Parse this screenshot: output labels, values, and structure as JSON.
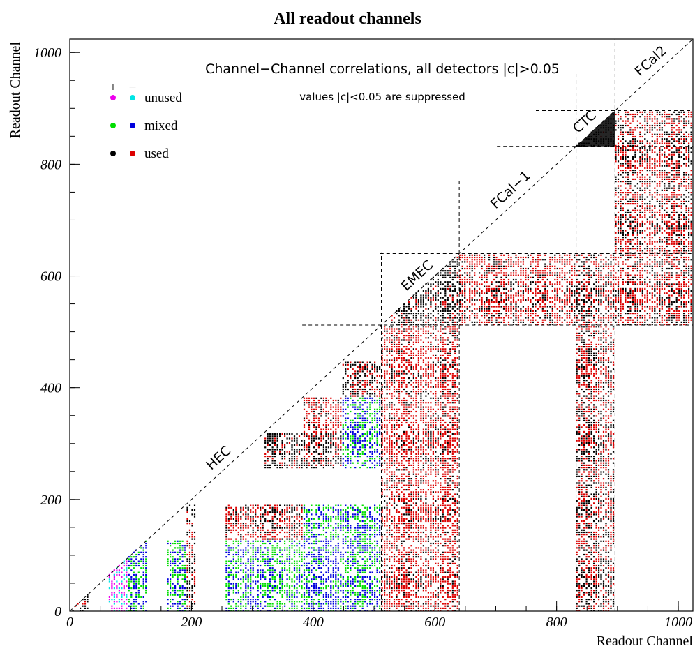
{
  "chart_data": {
    "type": "scatter",
    "title": "All readout channels",
    "xlabel": "Readout Channel",
    "ylabel": "Readout Channel",
    "xlim": [
      0,
      1024
    ],
    "ylim": [
      0,
      1024
    ],
    "x_ticks": [
      0,
      200,
      400,
      600,
      800,
      1000
    ],
    "y_ticks": [
      0,
      200,
      400,
      600,
      800,
      1000
    ],
    "annotations": {
      "main": "Channel−Channel correlations, all detectors |c|>0.05",
      "sub": "values |c|<0.05 are suppressed"
    },
    "legend": {
      "placement": "top-left",
      "sign_headers": [
        "+",
        "−"
      ],
      "entries": [
        {
          "label": "unused",
          "pos_color": "#ee00ee",
          "neg_color": "#00e5e5"
        },
        {
          "label": "mixed",
          "pos_color": "#00dd00",
          "neg_color": "#0000dd"
        },
        {
          "label": "used",
          "pos_color": "#000000",
          "neg_color": "#dd0000"
        }
      ]
    },
    "regions": [
      {
        "label": "HEC",
        "start": 0,
        "end": 512
      },
      {
        "label": "EMEC",
        "start": 512,
        "end": 640
      },
      {
        "label": "FCal−1",
        "start": 640,
        "end": 832
      },
      {
        "label": "CTC",
        "start": 832,
        "end": 896
      },
      {
        "label": "FCal2",
        "start": 896,
        "end": 1024
      }
    ],
    "boundaries": [
      512,
      640,
      832,
      896
    ],
    "blocks": [
      {
        "x": [
          0,
          32
        ],
        "y": [
          0,
          32
        ],
        "kind": "used",
        "pos": 0.75
      },
      {
        "x": [
          64,
          96
        ],
        "y": [
          64,
          96
        ],
        "kind": "unused",
        "pos": 0.7
      },
      {
        "x": [
          64,
          96
        ],
        "y": [
          0,
          96
        ],
        "kind": "unused",
        "pos": 0.55
      },
      {
        "x": [
          96,
          128
        ],
        "y": [
          0,
          128
        ],
        "kind": "mixed",
        "pos": 0.5
      },
      {
        "x": [
          160,
          192
        ],
        "y": [
          0,
          128
        ],
        "kind": "mixed",
        "pos": 0.55
      },
      {
        "x": [
          192,
          208
        ],
        "y": [
          0,
          192
        ],
        "kind": "used",
        "pos": 0.6
      },
      {
        "x": [
          256,
          320
        ],
        "y": [
          0,
          128
        ],
        "kind": "mixed",
        "pos": 0.5
      },
      {
        "x": [
          320,
          384
        ],
        "y": [
          0,
          128
        ],
        "kind": "mixed",
        "pos": 0.7
      },
      {
        "x": [
          384,
          448
        ],
        "y": [
          0,
          128
        ],
        "kind": "mixed",
        "pos": 0.3
      },
      {
        "x": [
          448,
          512
        ],
        "y": [
          0,
          128
        ],
        "kind": "mixed",
        "pos": 0.5
      },
      {
        "x": [
          256,
          320
        ],
        "y": [
          128,
          192
        ],
        "kind": "used",
        "pos": 0.35
      },
      {
        "x": [
          320,
          384
        ],
        "y": [
          128,
          192
        ],
        "kind": "used",
        "pos": 0.4
      },
      {
        "x": [
          384,
          512
        ],
        "y": [
          128,
          192
        ],
        "kind": "mixed",
        "pos": 0.5
      },
      {
        "x": [
          320,
          384
        ],
        "y": [
          256,
          320
        ],
        "kind": "used",
        "pos": 0.7
      },
      {
        "x": [
          384,
          448
        ],
        "y": [
          256,
          320
        ],
        "kind": "used",
        "pos": 0.6
      },
      {
        "x": [
          448,
          512
        ],
        "y": [
          256,
          320
        ],
        "kind": "mixed",
        "pos": 0.5
      },
      {
        "x": [
          384,
          448
        ],
        "y": [
          320,
          384
        ],
        "kind": "used",
        "pos": 0.2
      },
      {
        "x": [
          448,
          512
        ],
        "y": [
          320,
          384
        ],
        "kind": "mixed",
        "pos": 0.4
      },
      {
        "x": [
          448,
          512
        ],
        "y": [
          384,
          448
        ],
        "kind": "used",
        "pos": 0.6
      },
      {
        "x": [
          512,
          640
        ],
        "y": [
          0,
          512
        ],
        "kind": "used",
        "pos": 0.25
      },
      {
        "x": [
          528,
          640
        ],
        "y": [
          512,
          640
        ],
        "kind": "used",
        "pos": 0.85
      },
      {
        "x": [
          640,
          832
        ],
        "y": [
          512,
          640
        ],
        "kind": "used",
        "pos": 0.3
      },
      {
        "x": [
          832,
          896
        ],
        "y": [
          0,
          640
        ],
        "kind": "used",
        "pos": 0.5
      },
      {
        "x": [
          832,
          896
        ],
        "y": [
          832,
          896
        ],
        "kind": "used",
        "pos": 0.95
      },
      {
        "x": [
          896,
          1024
        ],
        "y": [
          512,
          896
        ],
        "kind": "used",
        "pos": 0.4
      }
    ]
  }
}
